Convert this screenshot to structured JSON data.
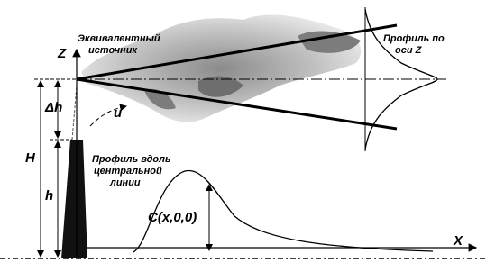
{
  "labels": {
    "source": [
      "Эквивалентный",
      "источник"
    ],
    "profile_z": [
      "Профиль по",
      "оси Z"
    ],
    "profile_center": [
      "Профиль вдоль",
      "центральной",
      "линии"
    ],
    "z_axis": "Z",
    "x_axis": "X",
    "delta_h": "Δh",
    "wind": "u",
    "H": "H",
    "h": "h",
    "concentration": "C(x,0,0)"
  }
}
